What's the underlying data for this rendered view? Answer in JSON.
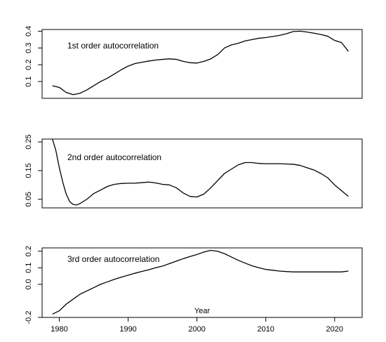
{
  "chart_data": [
    {
      "type": "line",
      "annotation": "1st order autocorrelation",
      "ylim": [
        0.0,
        0.41
      ],
      "yticks": [
        0.1,
        0.2,
        0.3,
        0.4
      ],
      "ytick_labels": [
        "0.1",
        "0.2",
        "0.3",
        "0.4"
      ],
      "x": [
        1979,
        1980,
        1981,
        1982,
        1983,
        1984,
        1985,
        1986,
        1987,
        1988,
        1989,
        1990,
        1991,
        1992,
        1993,
        1994,
        1995,
        1996,
        1997,
        1998,
        1999,
        2000,
        2001,
        2002,
        2003,
        2004,
        2005,
        2006,
        2007,
        2008,
        2009,
        2010,
        2011,
        2012,
        2013,
        2014,
        2015,
        2016,
        2017,
        2018,
        2019,
        2020,
        2021,
        2022
      ],
      "values": [
        0.075,
        0.065,
        0.035,
        0.022,
        0.03,
        0.05,
        0.075,
        0.1,
        0.12,
        0.145,
        0.17,
        0.192,
        0.207,
        0.215,
        0.222,
        0.228,
        0.232,
        0.235,
        0.232,
        0.22,
        0.212,
        0.21,
        0.22,
        0.235,
        0.26,
        0.3,
        0.318,
        0.328,
        0.342,
        0.35,
        0.358,
        0.362,
        0.368,
        0.375,
        0.385,
        0.398,
        0.4,
        0.395,
        0.388,
        0.38,
        0.37,
        0.345,
        0.332,
        0.28
      ]
    },
    {
      "type": "line",
      "annotation": "2nd order autocorrelation",
      "ylim": [
        0.02,
        0.26
      ],
      "yticks": [
        0.05,
        0.15,
        0.25
      ],
      "ytick_labels": [
        "0.05",
        "0.15",
        "0.25"
      ],
      "x": [
        1979,
        1979.5,
        1980,
        1980.5,
        1981,
        1981.5,
        1982,
        1982.5,
        1983,
        1984,
        1985,
        1986,
        1987,
        1988,
        1989,
        1990,
        1991,
        1992,
        1993,
        1994,
        1995,
        1996,
        1997,
        1998,
        1999,
        2000,
        2001,
        2002,
        2003,
        2004,
        2005,
        2006,
        2007,
        2008,
        2009,
        2010,
        2011,
        2012,
        2013,
        2014,
        2015,
        2016,
        2017,
        2018,
        2019,
        2020,
        2021,
        2022
      ],
      "values": [
        0.26,
        0.22,
        0.16,
        0.11,
        0.068,
        0.042,
        0.032,
        0.03,
        0.035,
        0.05,
        0.07,
        0.082,
        0.095,
        0.102,
        0.105,
        0.106,
        0.106,
        0.108,
        0.11,
        0.107,
        0.102,
        0.1,
        0.09,
        0.072,
        0.06,
        0.058,
        0.068,
        0.09,
        0.115,
        0.14,
        0.155,
        0.17,
        0.178,
        0.178,
        0.175,
        0.174,
        0.174,
        0.174,
        0.173,
        0.172,
        0.168,
        0.16,
        0.152,
        0.14,
        0.125,
        0.1,
        0.08,
        0.06
      ]
    },
    {
      "type": "line",
      "annotation": "3rd order autocorrelation",
      "xlabel": "Year",
      "xlim": [
        1977.5,
        2024
      ],
      "xticks": [
        1980,
        1990,
        2000,
        2010,
        2020
      ],
      "ylim": [
        -0.2,
        0.22
      ],
      "yticks": [
        -0.2,
        0.0,
        0.1,
        0.2
      ],
      "ytick_labels": [
        "-0.2",
        "0.0",
        "0.1",
        "0.2"
      ],
      "x": [
        1979,
        1980,
        1981,
        1982,
        1983,
        1984,
        1985,
        1986,
        1987,
        1988,
        1989,
        1990,
        1991,
        1992,
        1993,
        1994,
        1995,
        1996,
        1997,
        1998,
        1999,
        2000,
        2001,
        2002,
        2003,
        2004,
        2005,
        2006,
        2007,
        2008,
        2009,
        2010,
        2011,
        2012,
        2013,
        2014,
        2015,
        2016,
        2017,
        2018,
        2019,
        2020,
        2021,
        2022
      ],
      "values": [
        -0.18,
        -0.16,
        -0.12,
        -0.09,
        -0.06,
        -0.04,
        -0.02,
        0.0,
        0.015,
        0.03,
        0.043,
        0.055,
        0.067,
        0.078,
        0.088,
        0.1,
        0.11,
        0.125,
        0.14,
        0.155,
        0.168,
        0.18,
        0.195,
        0.205,
        0.2,
        0.185,
        0.165,
        0.145,
        0.128,
        0.112,
        0.1,
        0.09,
        0.085,
        0.08,
        0.077,
        0.075,
        0.075,
        0.075,
        0.075,
        0.075,
        0.075,
        0.075,
        0.075,
        0.08
      ]
    }
  ]
}
